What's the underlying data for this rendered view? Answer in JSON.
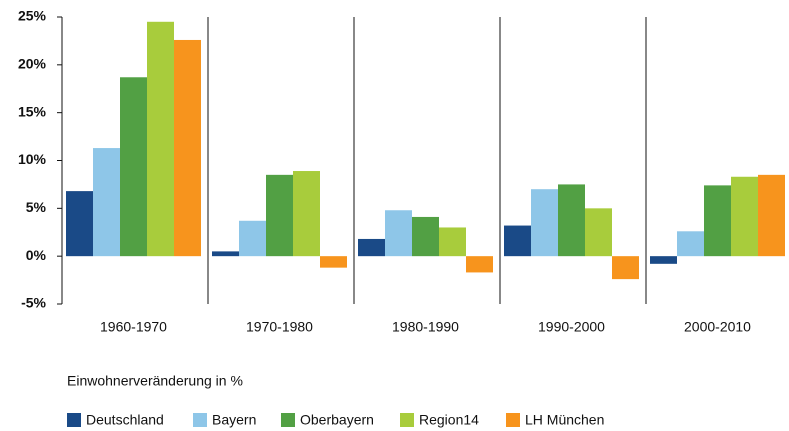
{
  "chart_data": {
    "type": "bar",
    "subtitle": "Einwohnerveränderung in %",
    "categories": [
      "1960-1970",
      "1970-1980",
      "1980-1990",
      "1990-2000",
      "2000-2010"
    ],
    "series": [
      {
        "name": "Deutschland",
        "color": "#1a4a87",
        "values": [
          6.8,
          0.5,
          1.8,
          3.2,
          -0.8
        ]
      },
      {
        "name": "Bayern",
        "color": "#8ec6e8",
        "values": [
          11.3,
          3.7,
          4.8,
          7.0,
          2.6
        ]
      },
      {
        "name": "Oberbayern",
        "color": "#52a044",
        "values": [
          18.7,
          8.5,
          4.1,
          7.5,
          7.4
        ]
      },
      {
        "name": "Region14",
        "color": "#a8cc3c",
        "values": [
          24.5,
          8.9,
          3.0,
          5.0,
          8.3
        ]
      },
      {
        "name": "LH München",
        "color": "#f7941d",
        "values": [
          22.6,
          -1.2,
          -1.7,
          -2.4,
          8.5
        ]
      }
    ],
    "ylim": [
      -5,
      25
    ],
    "yticks": [
      {
        "value": -5,
        "label": "-5%"
      },
      {
        "value": 0,
        "label": "0%"
      },
      {
        "value": 5,
        "label": "5%"
      },
      {
        "value": 10,
        "label": "10%"
      },
      {
        "value": 15,
        "label": "15%"
      },
      {
        "value": 20,
        "label": "20%"
      },
      {
        "value": 25,
        "label": "25%"
      }
    ],
    "legend": "bottom-left"
  }
}
